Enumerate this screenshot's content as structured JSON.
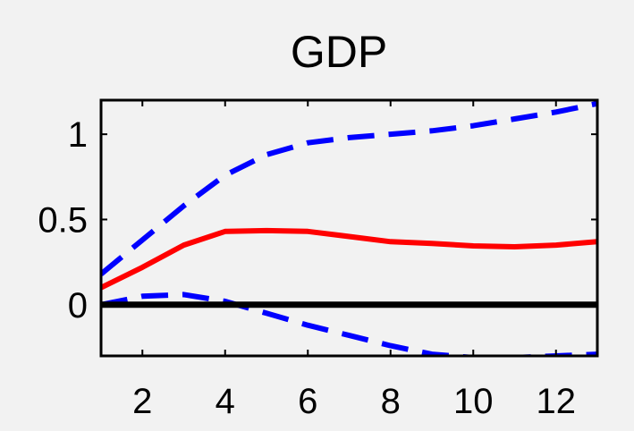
{
  "chart_data": {
    "type": "line",
    "title": "GDP",
    "xlabel": "",
    "ylabel": "",
    "xlim": [
      1,
      13
    ],
    "ylim": [
      -0.3,
      1.2
    ],
    "xticks": [
      2,
      4,
      6,
      8,
      10,
      12
    ],
    "xtick_labels": [
      "2",
      "4",
      "6",
      "8",
      "10",
      "12"
    ],
    "yticks": [
      0,
      0.5,
      1
    ],
    "ytick_labels": [
      "0",
      "0.5",
      "1"
    ],
    "grid": false,
    "legend": "none",
    "x": [
      1,
      2,
      3,
      4,
      5,
      6,
      7,
      8,
      9,
      10,
      11,
      12,
      13
    ],
    "series": [
      {
        "style": "solid",
        "color": "#ff0000",
        "values": [
          0.1,
          0.22,
          0.35,
          0.43,
          0.435,
          0.43,
          0.4,
          0.37,
          0.36,
          0.345,
          0.34,
          0.35,
          0.37
        ]
      },
      {
        "style": "dashed",
        "color": "#0000ff",
        "values": [
          0.18,
          0.38,
          0.58,
          0.76,
          0.88,
          0.95,
          0.98,
          1.0,
          1.02,
          1.05,
          1.09,
          1.13,
          1.18
        ]
      },
      {
        "style": "dashed",
        "color": "#0000ff",
        "values": [
          0.0,
          0.05,
          0.06,
          0.02,
          -0.05,
          -0.12,
          -0.18,
          -0.24,
          -0.29,
          -0.31,
          -0.31,
          -0.3,
          -0.29
        ]
      },
      {
        "style": "solid",
        "color": "#000000",
        "values": [
          0,
          0,
          0,
          0,
          0,
          0,
          0,
          0,
          0,
          0,
          0,
          0,
          0
        ]
      }
    ]
  }
}
